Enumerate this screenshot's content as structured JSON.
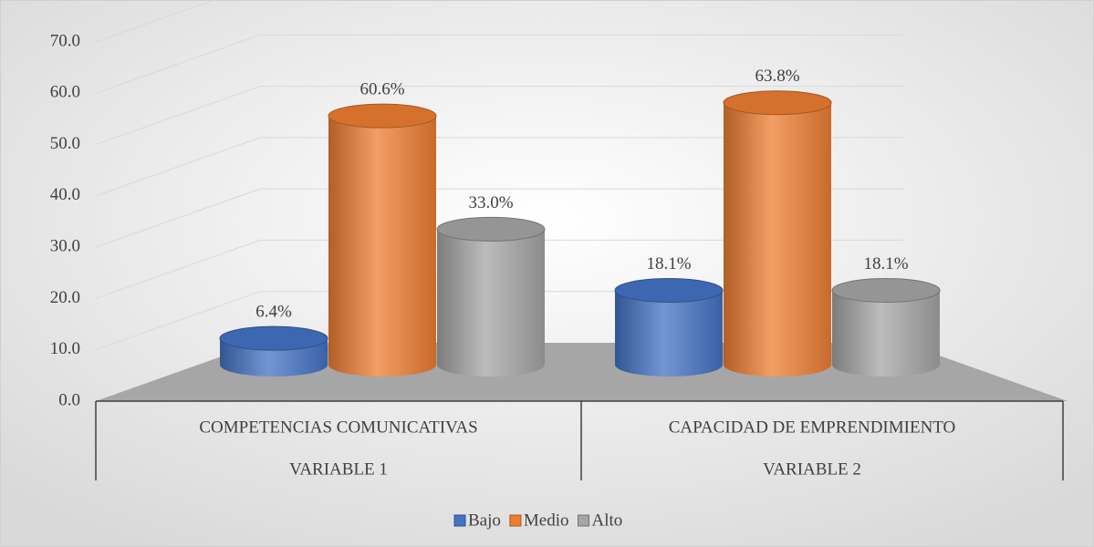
{
  "chart_data": {
    "type": "bar3d",
    "categories": [
      "COMPETENCIAS COMUNICATIVAS",
      "CAPACIDAD DE EMPRENDIMIENTO"
    ],
    "groups": [
      "VARIABLE 1",
      "VARIABLE 2"
    ],
    "series": [
      {
        "name": "Bajo",
        "color": "#4472c4",
        "values": [
          6.4,
          18.1
        ],
        "value_labels": [
          "6.4%",
          "18.1%"
        ]
      },
      {
        "name": "Medio",
        "color": "#ed7d31",
        "values": [
          60.6,
          63.8
        ],
        "value_labels": [
          "60.6%",
          "63.8%"
        ]
      },
      {
        "name": "Alto",
        "color": "#a5a5a5",
        "values": [
          33.0,
          18.1
        ],
        "value_labels": [
          "33.0%",
          "18.1%"
        ]
      }
    ],
    "ylim": [
      0,
      70
    ],
    "yticks": [
      {
        "value": 0,
        "label": "0.0"
      },
      {
        "value": 10,
        "label": "10.0"
      },
      {
        "value": 20,
        "label": "20.0"
      },
      {
        "value": 30,
        "label": "30.0"
      },
      {
        "value": 40,
        "label": "40.0"
      },
      {
        "value": 50,
        "label": "50.0"
      },
      {
        "value": 60,
        "label": "60.0"
      },
      {
        "value": 70,
        "label": "70.0"
      }
    ],
    "grid": true,
    "legend": "bottom"
  }
}
